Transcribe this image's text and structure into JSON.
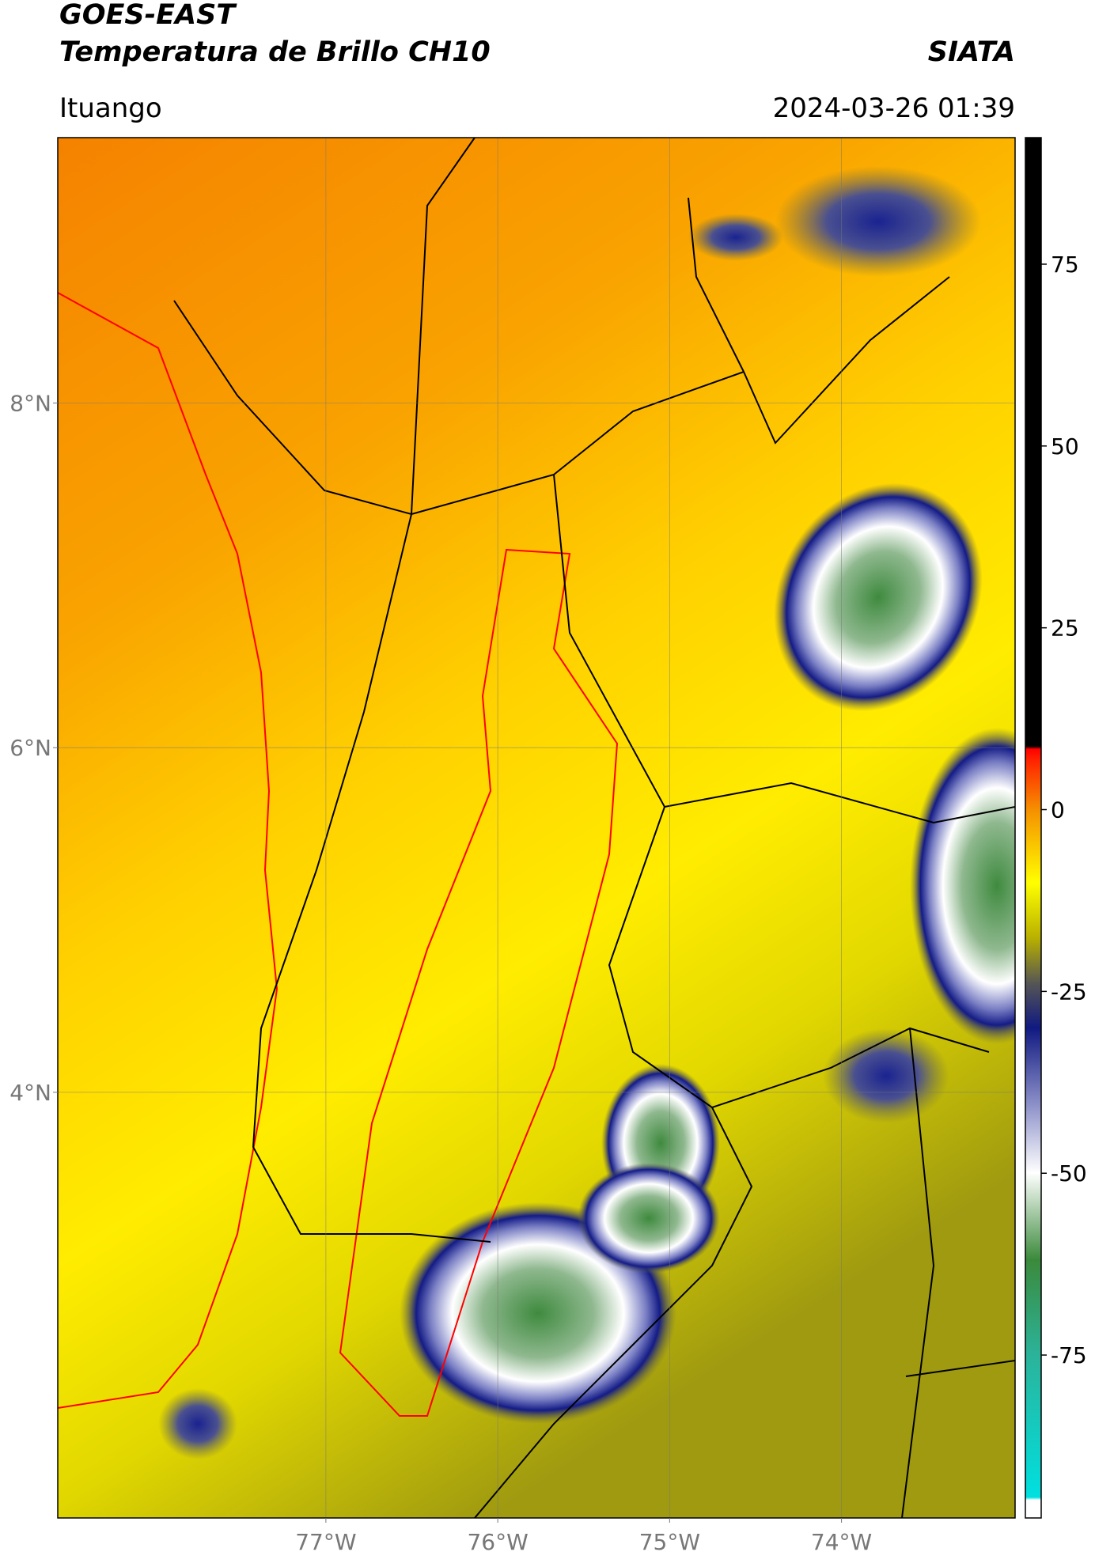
{
  "title": "GOES-EAST",
  "subtitle": "Temperatura de Brillo CH10",
  "source": "SIATA",
  "location": "Ituango",
  "datetime": "2024-03-26 01:39",
  "map": {
    "xlim": [
      -78.56,
      -72.99
    ],
    "ylim": [
      1.53,
      9.54
    ],
    "xticks": [
      {
        "value": -77,
        "label": "77°W"
      },
      {
        "value": -76,
        "label": "76°W"
      },
      {
        "value": -75,
        "label": "75°W"
      },
      {
        "value": -74,
        "label": "74°W"
      }
    ],
    "yticks": [
      {
        "value": 8,
        "label": "8°N"
      },
      {
        "value": 6,
        "label": "6°N"
      },
      {
        "value": 4,
        "label": "4°N"
      }
    ],
    "grid": true
  },
  "colorbar": {
    "clim": [
      -97.4,
      92.4
    ],
    "ticks": [
      75,
      50,
      25,
      0,
      -25,
      -50,
      -75
    ]
  }
}
